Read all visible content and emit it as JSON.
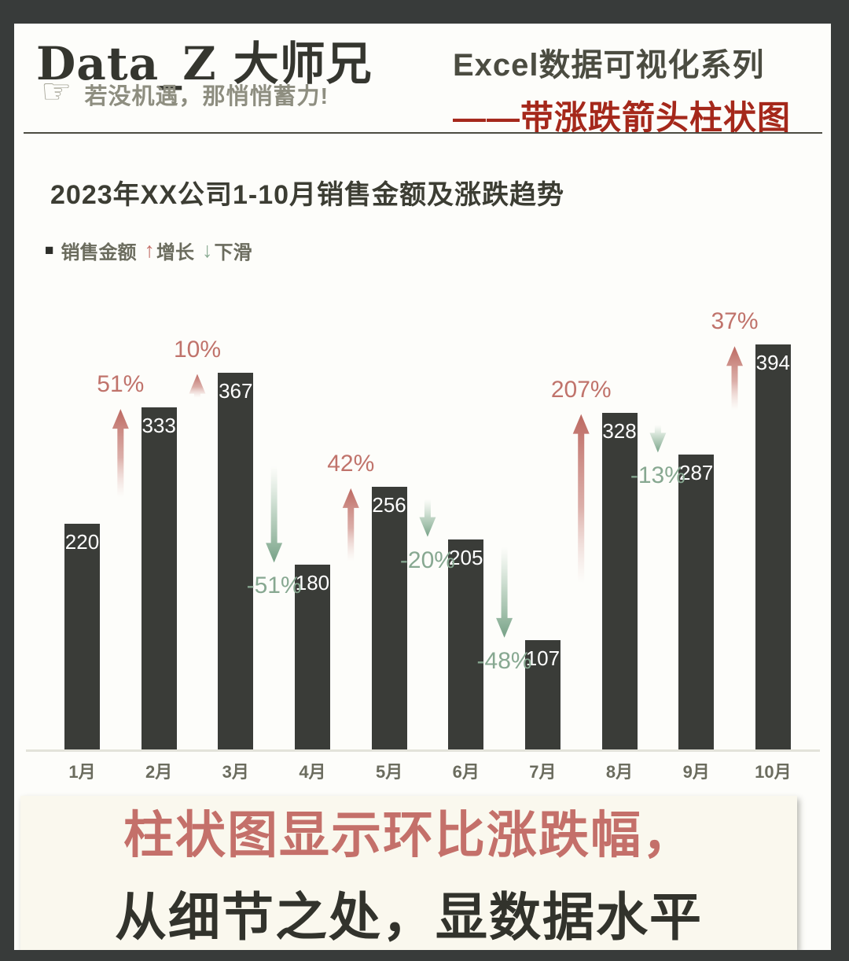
{
  "page": {
    "brand": "Data_Z 大师兄",
    "hand_glyph": "☞",
    "motto": "若没机遇，那悄悄蓄力!",
    "series_line1": "Excel数据可视化系列",
    "series_line2": "——带涨跌箭头柱状图"
  },
  "chart": {
    "title": "2023年XX公司1-10月销售金额及涨跌趋势",
    "legend": {
      "square_icon": "■",
      "bar_label": "销售金额",
      "up_icon": "↑",
      "up_label": "增长",
      "down_icon": "↓",
      "down_label": "下滑"
    }
  },
  "chart_data": {
    "type": "bar",
    "title": "2023年XX公司1-10月销售金额及涨跌趋势",
    "categories": [
      "1月",
      "2月",
      "3月",
      "4月",
      "5月",
      "6月",
      "7月",
      "8月",
      "9月",
      "10月"
    ],
    "values": [
      220,
      333,
      367,
      180,
      256,
      205,
      107,
      328,
      287,
      394
    ],
    "series": [
      {
        "name": "销售金额",
        "values": [
          220,
          333,
          367,
          180,
          256,
          205,
          107,
          328,
          287,
          394
        ]
      },
      {
        "name": "环比涨跌幅",
        "values": [
          null,
          51,
          10,
          -51,
          42,
          -20,
          -48,
          207,
          -13,
          37
        ]
      }
    ],
    "change_labels": [
      "51%",
      "10%",
      "-51%",
      "42%",
      "-20%",
      "-48%",
      "207%",
      "-13%",
      "37%"
    ],
    "legend_entries": [
      "销售金额",
      "增长",
      "下滑"
    ],
    "xlabel": "",
    "ylabel": "",
    "ylim": [
      0,
      400
    ],
    "grid": false,
    "legend_position": "top-left",
    "bar_color": "#3a3c38",
    "value_label_color": "#ffffff",
    "up_color": "#c0736b",
    "down_color": "#87a891"
  },
  "banner": {
    "line1": "柱状图显示环比涨跌幅，",
    "line2": "从细节之处，显数据水平"
  },
  "colors": {
    "frame": "#383b3a",
    "header_accent_red": "#a5281b",
    "banner_red": "#c4706a",
    "banner_dark": "#32332c"
  }
}
